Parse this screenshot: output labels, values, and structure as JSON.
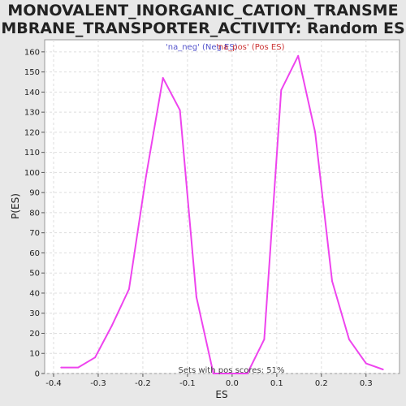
{
  "chart_data": {
    "type": "line",
    "title": "MONOVALENT_INORGANIC_CATION_TRANSMEMBRANE_TRANSPORTER_ACTIVITY: Random ES distribution",
    "xlabel": "ES",
    "ylabel": "P(ES)",
    "xlim": [
      -0.42,
      0.375
    ],
    "ylim": [
      0,
      166
    ],
    "grid": true,
    "x_ticks": [
      "-0.4",
      "-0.3",
      "-0.2",
      "-0.1",
      "0.0",
      "0.1",
      "0.2",
      "0.3"
    ],
    "x_tick_values": [
      -0.4,
      -0.3,
      -0.2,
      -0.1,
      0.0,
      0.1,
      0.2,
      0.3
    ],
    "y_ticks": [
      "0",
      "10",
      "20",
      "30",
      "40",
      "50",
      "60",
      "70",
      "80",
      "90",
      "100",
      "110",
      "120",
      "130",
      "140",
      "150",
      "160"
    ],
    "y_tick_values": [
      0,
      10,
      20,
      30,
      40,
      50,
      60,
      70,
      80,
      90,
      100,
      110,
      120,
      130,
      140,
      150,
      160
    ],
    "legend": [
      {
        "label": "'na_neg' (Neg ES)",
        "color": "#5555cc"
      },
      {
        "label": "'na_pos' (Pos ES)",
        "color": "#cc3333"
      }
    ],
    "annotation": "Sets with pos scores: 51%",
    "series": [
      {
        "color": "#ee44ee",
        "x": [
          -0.383,
          -0.345,
          -0.307,
          -0.269,
          -0.231,
          -0.193,
          -0.155,
          -0.117,
          -0.08,
          -0.042,
          -0.004,
          0.034,
          0.072,
          0.11,
          0.148,
          0.186,
          0.224,
          0.262,
          0.3,
          0.338
        ],
        "y": [
          3,
          3,
          8,
          24,
          42,
          98,
          147,
          131,
          38,
          0,
          0,
          0,
          17,
          141,
          158,
          120,
          46,
          17,
          5,
          2
        ]
      }
    ]
  }
}
